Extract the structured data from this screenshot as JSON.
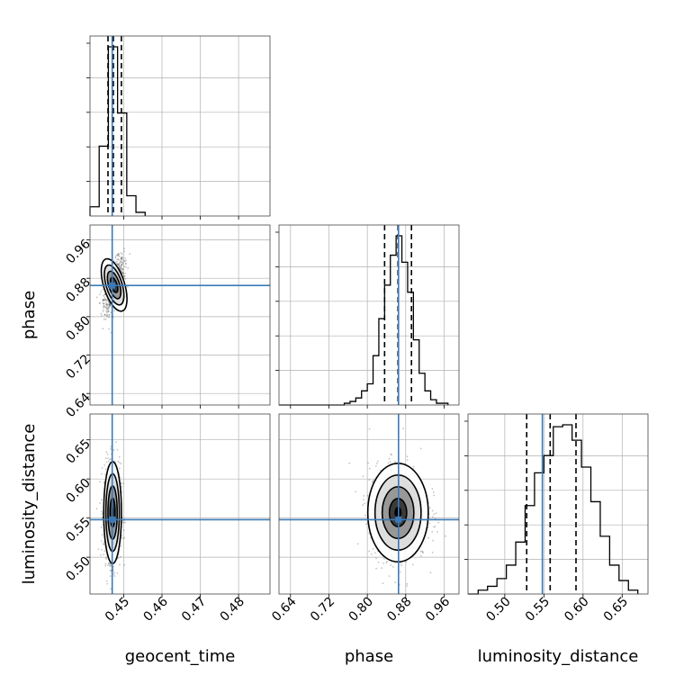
{
  "chart_data": {
    "type": "corner",
    "parameters": [
      "geocent_time",
      "phase",
      "luminosity_distance"
    ],
    "truths": {
      "geocent_time": 0.447,
      "phase": 0.865,
      "luminosity_distance": 0.548
    },
    "colors": {
      "truth": "#3b7ab8",
      "hist": "#000000",
      "grid": "#b0b0b0",
      "contour": "#000000"
    },
    "grid": true,
    "panels": {
      "geocent_time_hist": {
        "xlim": [
          0.4412,
          0.4882
        ],
        "bins": [
          0.4412,
          0.4436,
          0.446,
          0.4484,
          0.4508,
          0.4532,
          0.4556
        ],
        "counts": [
          5,
          38,
          92,
          56,
          11,
          2
        ],
        "quantiles": [
          0.4459,
          0.4473,
          0.4494
        ]
      },
      "phase_hist": {
        "xlim": [
          0.616,
          0.991
        ],
        "bins": [
          0.752,
          0.764,
          0.776,
          0.788,
          0.8,
          0.812,
          0.824,
          0.836,
          0.848,
          0.86,
          0.872,
          0.884,
          0.896,
          0.908,
          0.92,
          0.932,
          0.944,
          0.956,
          0.968
        ],
        "counts": [
          1,
          2,
          4,
          8,
          12,
          28,
          49,
          68,
          85,
          96,
          81,
          64,
          37,
          18,
          8,
          3,
          1,
          1
        ],
        "quantiles": [
          0.836,
          0.864,
          0.892
        ]
      },
      "luminosity_distance_hist": {
        "xlim": [
          0.453,
          0.683
        ],
        "bins": [
          0.466,
          0.478,
          0.49,
          0.502,
          0.514,
          0.526,
          0.538,
          0.55,
          0.562,
          0.574,
          0.586,
          0.598,
          0.61,
          0.622,
          0.634,
          0.646,
          0.658,
          0.67
        ],
        "counts": [
          2,
          4,
          8,
          15,
          27,
          46,
          63,
          72,
          87,
          88,
          80,
          66,
          48,
          30,
          15,
          7,
          2
        ],
        "quantiles": [
          0.528,
          0.558,
          0.591
        ]
      },
      "phase_vs_geocent_time": {
        "xlim": [
          0.4412,
          0.4882
        ],
        "ylim": [
          0.616,
          0.991
        ],
        "center": [
          0.4475,
          0.866
        ],
        "spread": [
          0.0013,
          0.027
        ],
        "rho": 0.55
      },
      "luminosity_distance_vs_geocent_time": {
        "xlim": [
          0.4412,
          0.4882
        ],
        "ylim": [
          0.453,
          0.683
        ],
        "center": [
          0.4471,
          0.557
        ],
        "spread": [
          0.0011,
          0.031
        ],
        "rho": 0.0
      },
      "luminosity_distance_vs_phase": {
        "xlim": [
          0.616,
          0.991
        ],
        "ylim": [
          0.453,
          0.683
        ],
        "center": [
          0.864,
          0.557
        ],
        "spread": [
          0.03,
          0.03
        ],
        "rho": 0.0
      }
    },
    "ticks": {
      "geocent_time": [
        "0.45",
        "0.46",
        "0.47",
        "0.48"
      ],
      "phase": [
        "0.64",
        "0.72",
        "0.80",
        "0.88",
        "0.96"
      ],
      "luminosity_distance": [
        "0.50",
        "0.55",
        "0.60",
        "0.65"
      ]
    },
    "axis_labels": {
      "bottom": [
        "geocent_time",
        "phase",
        "luminosity_distance"
      ],
      "left": [
        "phase",
        "luminosity_distance"
      ]
    }
  }
}
